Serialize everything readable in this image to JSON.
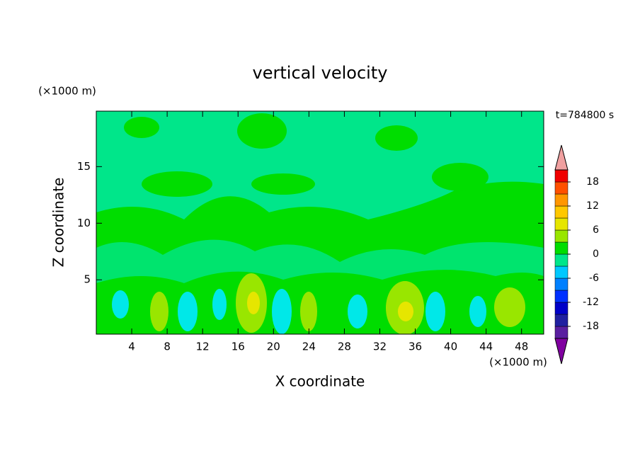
{
  "chart_data": {
    "type": "contour",
    "title": "vertical velocity",
    "x_label": "X coordinate",
    "y_label": "Z coordinate",
    "x_unit": "(×1000 m)",
    "y_unit": "(×1000 m)",
    "annotation": "t=784800 s",
    "xlim": [
      0,
      50.5
    ],
    "xticks": [
      4,
      8,
      12,
      16,
      20,
      24,
      28,
      32,
      36,
      40,
      44,
      48
    ],
    "ylim": [
      0.2,
      19.9
    ],
    "yticks": [
      5,
      10,
      15
    ],
    "colorbar": {
      "levels": [
        -21,
        -18,
        -15,
        -12,
        -9,
        -6,
        -3,
        0,
        3,
        6,
        9,
        12,
        15,
        18,
        21
      ],
      "colors": [
        "#5a1fa0",
        "#2020a0",
        "#0000c8",
        "#0030ff",
        "#0080ff",
        "#00c8ff",
        "#00e68a",
        "#00dd00",
        "#99e600",
        "#e6e600",
        "#ffc800",
        "#ff9600",
        "#ff5000",
        "#f00000"
      ],
      "under_color": "#8000a0",
      "over_color": "#f0a0a0",
      "ticks": [
        -18,
        -12,
        -6,
        0,
        6,
        12,
        18
      ]
    }
  }
}
